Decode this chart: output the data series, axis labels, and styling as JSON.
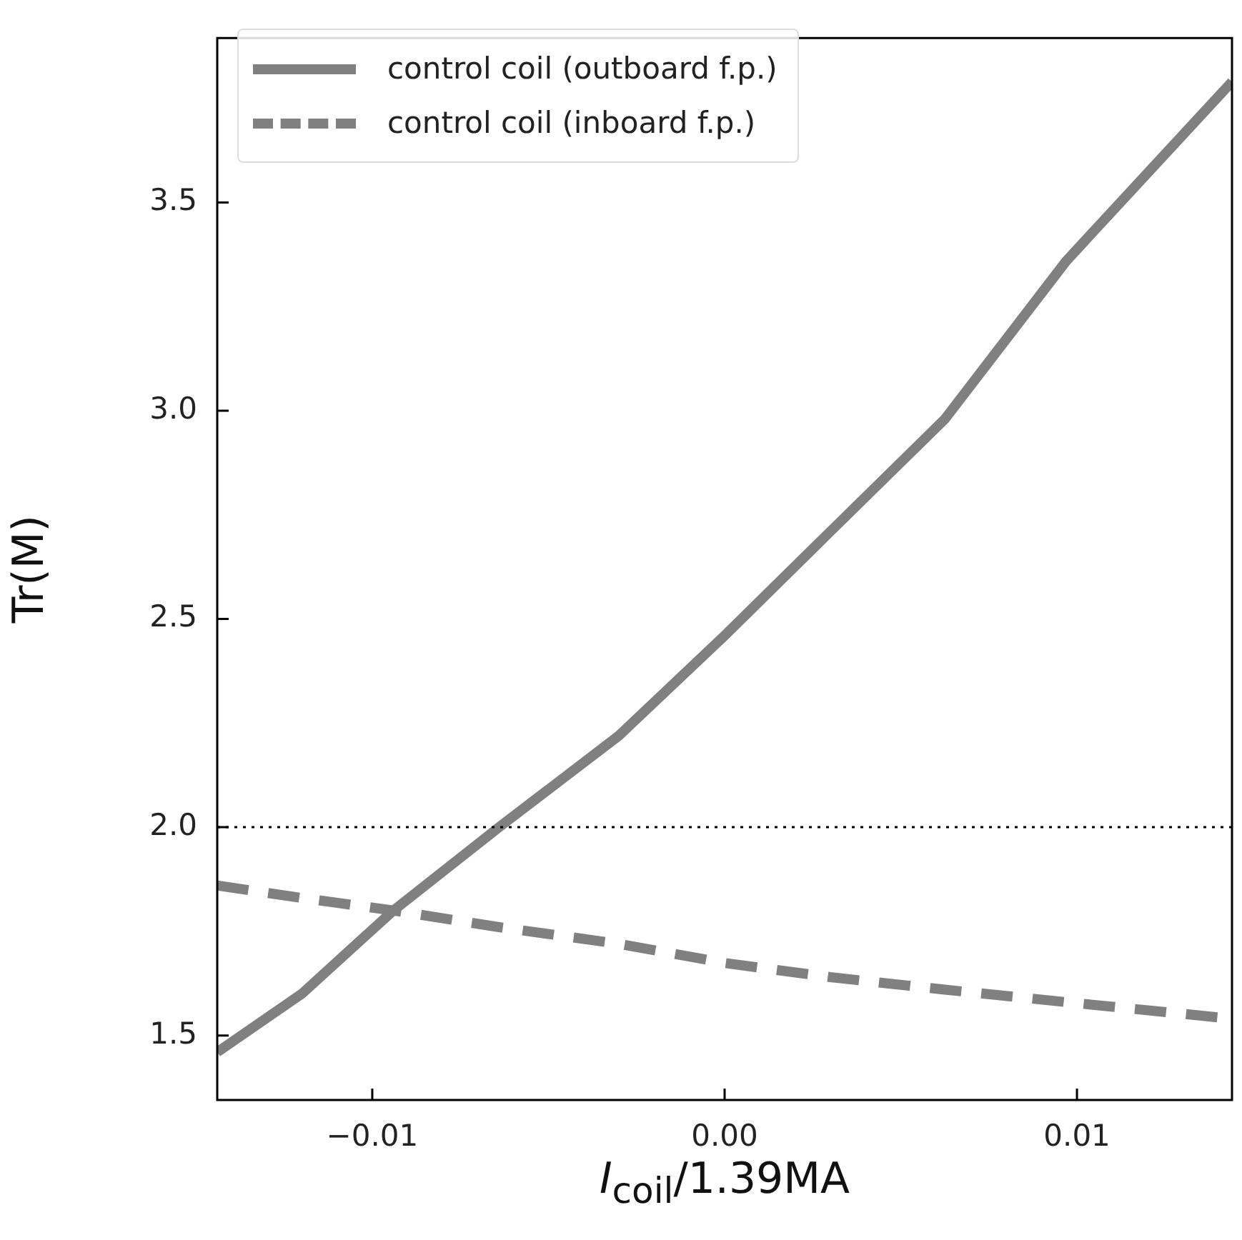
{
  "chart_data": {
    "type": "line",
    "xlabel": "I$_{coil}$/1.39MA",
    "ylabel": "Tr(M)",
    "xlim": [
      -0.0144,
      0.0144
    ],
    "xticks": [
      {
        "value": -0.01,
        "label": "−0.01"
      },
      {
        "value": 0,
        "label": "0.00"
      },
      {
        "value": 0.01,
        "label": "0.01"
      }
    ],
    "ylim": [
      1.345,
      3.895
    ],
    "yticks": [
      {
        "value": 1.5,
        "label": "1.5"
      },
      {
        "value": 2,
        "label": "2.0"
      },
      {
        "value": 2.5,
        "label": "2.5"
      },
      {
        "value": 3,
        "label": "3.0"
      },
      {
        "value": 3.5,
        "label": "3.5"
      }
    ],
    "x": [
      -0.0144,
      -0.012,
      -0.0094,
      -0.0064,
      -0.003,
      0,
      0.003,
      0.00625,
      0.0097,
      0.0144
    ],
    "series": [
      {
        "name": "control coil (outboard f.p.)",
        "color": "#808080",
        "line_style": "solid",
        "values": [
          1.46,
          1.6,
          1.8,
          2.0,
          2.22,
          2.46,
          2.71,
          2.98,
          3.36,
          3.79
        ]
      },
      {
        "name": "control coil (inboard f.p.)",
        "color": "#808080",
        "line_style": "dashed",
        "values": [
          1.86,
          1.83,
          1.8,
          1.76,
          1.72,
          1.674,
          1.64,
          1.61,
          1.58,
          1.54
        ]
      }
    ],
    "ref_lines": [
      {
        "axis": "y",
        "value": 2.0,
        "color": "#000000",
        "line_style": "dotted"
      }
    ],
    "legend": "top left",
    "grid": false,
    "marker": "none"
  }
}
